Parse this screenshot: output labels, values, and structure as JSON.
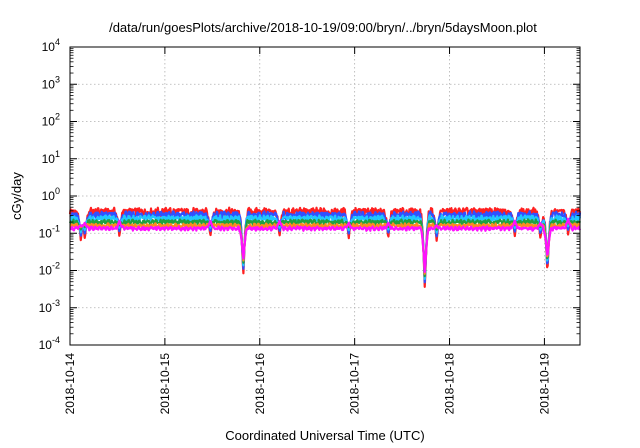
{
  "chart_data": {
    "type": "line",
    "title": "/data/run/goesPlots/archive/2018-10-19/09:00/bryn/../bryn/5daysMoon.plot",
    "xlabel": "Coordinated Universal Time (UTC)",
    "ylabel": "cGy/day",
    "yscale": "log",
    "ylim": [
      0.0001,
      10000
    ],
    "xlim": [
      "2018-10-14T00:00",
      "2018-10-19T09:00"
    ],
    "x_ticks": [
      "2018-10-14",
      "2018-10-15",
      "2018-10-16",
      "2018-10-17",
      "2018-10-18",
      "2018-10-19"
    ],
    "y_ticks": [
      {
        "value": 0.0001,
        "base": "10",
        "exp": "-4"
      },
      {
        "value": 0.001,
        "base": "10",
        "exp": "-3"
      },
      {
        "value": 0.01,
        "base": "10",
        "exp": "-2"
      },
      {
        "value": 0.1,
        "base": "10",
        "exp": "-1"
      },
      {
        "value": 1,
        "base": "10",
        "exp": "0"
      },
      {
        "value": 10,
        "base": "10",
        "exp": "1"
      },
      {
        "value": 100,
        "base": "10",
        "exp": "2"
      },
      {
        "value": 1000,
        "base": "10",
        "exp": "3"
      },
      {
        "value": 10000,
        "base": "10",
        "exp": "4"
      }
    ],
    "grid": true,
    "legend": "none",
    "series": [
      {
        "color": "#ff2020",
        "base": 0.38,
        "ripple": 0.28
      },
      {
        "color": "#3050ff",
        "base": 0.31,
        "ripple": 0.25
      },
      {
        "color": "#20c8ff",
        "base": 0.25,
        "ripple": 0.2
      },
      {
        "color": "#20a040",
        "base": 0.2,
        "ripple": 0.15
      },
      {
        "color": "#ff8a20",
        "base": 0.16,
        "ripple": 0.12
      },
      {
        "color": "#ff10ff",
        "base": 0.135,
        "ripple": 0.1
      }
    ],
    "dips": [
      {
        "x": "2018-10-14T02:45",
        "value": 0.06
      },
      {
        "x": "2018-10-14T03:45",
        "value": 0.07
      },
      {
        "x": "2018-10-14T12:30",
        "value": 0.08
      },
      {
        "x": "2018-10-15T11:30",
        "value": 0.08
      },
      {
        "x": "2018-10-15T19:50",
        "value": 0.007
      },
      {
        "x": "2018-10-16T05:00",
        "value": 0.08
      },
      {
        "x": "2018-10-16T22:30",
        "value": 0.07
      },
      {
        "x": "2018-10-17T08:30",
        "value": 0.07
      },
      {
        "x": "2018-10-17T17:45",
        "value": 0.003
      },
      {
        "x": "2018-10-17T20:45",
        "value": 0.06
      },
      {
        "x": "2018-10-18T16:30",
        "value": 0.08
      },
      {
        "x": "2018-10-18T23:00",
        "value": 0.07
      },
      {
        "x": "2018-10-19T00:45",
        "value": 0.008
      },
      {
        "x": "2018-10-19T06:00",
        "value": 0.09
      }
    ]
  }
}
